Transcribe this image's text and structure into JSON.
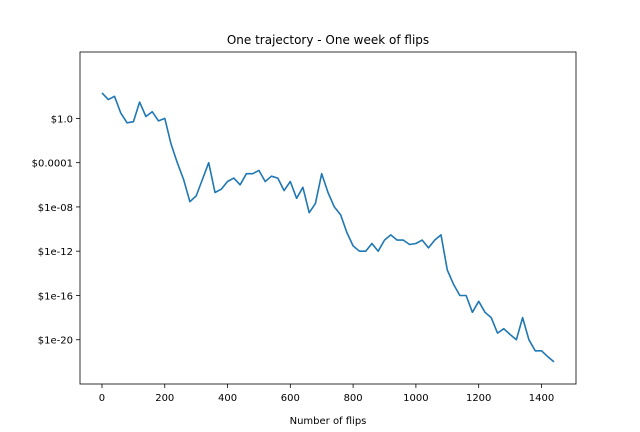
{
  "chart_data": {
    "type": "line",
    "title": "One trajectory - One week of flips",
    "xlabel": "Number of flips",
    "ylabel": "",
    "xlim": [
      -70,
      1510
    ],
    "x_ticks": [
      0,
      200,
      400,
      600,
      800,
      1000,
      1200,
      1400
    ],
    "x_tick_labels": [
      "0",
      "200",
      "400",
      "600",
      "800",
      "1000",
      "1200",
      "1400"
    ],
    "y_scale": "log",
    "ylim": [
      1e-24,
      1000000.0
    ],
    "y_ticks": [
      1,
      0.0001,
      1e-08,
      1e-12,
      1e-16,
      1e-20
    ],
    "y_tick_labels": [
      "$1.0",
      "$0.0001",
      "$1e-08",
      "$1e-12",
      "$1e-16",
      "$1e-20"
    ],
    "grid": false,
    "line_color": "#1f77b4",
    "series": [
      {
        "x": [
          0,
          20,
          40,
          60,
          80,
          100,
          120,
          140,
          160,
          180,
          200,
          220,
          240,
          260,
          280,
          300,
          320,
          340,
          360,
          380,
          400,
          420,
          440,
          460,
          480,
          500,
          520,
          540,
          560,
          580,
          600,
          620,
          640,
          660,
          680,
          700,
          720,
          740,
          760,
          780,
          800,
          820,
          840,
          860,
          880,
          900,
          920,
          940,
          960,
          980,
          1000,
          1020,
          1040,
          1060,
          1080,
          1100,
          1120,
          1140,
          1160,
          1180,
          1200,
          1220,
          1240,
          1260,
          1280,
          1300,
          1320,
          1340,
          1360,
          1380,
          1400,
          1420,
          1440
        ],
        "y": [
          200,
          50,
          100,
          3,
          0.4,
          0.5,
          30,
          1.5,
          4,
          0.6,
          1.0,
          0.005,
          0.0001,
          3e-06,
          3e-08,
          1e-07,
          3e-06,
          0.0001,
          2e-07,
          4e-07,
          2e-06,
          4e-06,
          1e-06,
          1e-05,
          1e-05,
          2e-05,
          2e-06,
          6e-06,
          4e-06,
          3e-07,
          2e-06,
          6e-08,
          6e-07,
          3e-09,
          2e-08,
          1e-05,
          2e-07,
          1e-08,
          2e-09,
          5e-11,
          3e-12,
          1e-12,
          1e-12,
          5e-12,
          1e-12,
          1e-11,
          3e-11,
          1e-11,
          1e-11,
          4e-12,
          5e-12,
          1e-11,
          2e-12,
          1e-11,
          3e-11,
          2e-14,
          1e-15,
          1e-16,
          1e-16,
          3e-18,
          3e-17,
          3e-18,
          1e-18,
          4e-20,
          1e-19,
          3e-20,
          1e-20,
          1e-18,
          1e-20,
          1e-21,
          1e-21,
          3e-22,
          1e-22
        ]
      }
    ]
  }
}
